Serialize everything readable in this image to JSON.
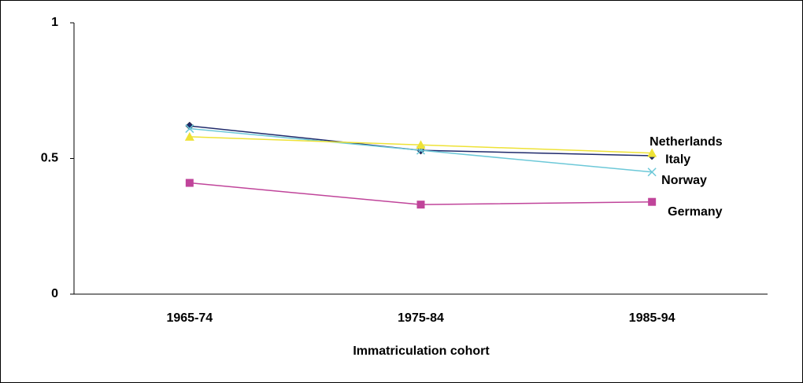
{
  "chart_data": {
    "type": "line",
    "x_label": "Immatriculation cohort",
    "categories": [
      "1965-74",
      "1975-84",
      "1985-94"
    ],
    "ylim": [
      0,
      1
    ],
    "yticks": [
      0,
      0.5,
      1
    ],
    "series": [
      {
        "name": "Italy",
        "color": "#1f2a6b",
        "values": [
          0.62,
          0.53,
          0.51
        ]
      },
      {
        "name": "Norway",
        "color": "#6cc8d8",
        "values": [
          0.61,
          0.53,
          0.45
        ]
      },
      {
        "name": "Netherlands",
        "color": "#eee236",
        "values": [
          0.58,
          0.55,
          0.52
        ]
      },
      {
        "name": "Germany",
        "color": "#c0449a",
        "values": [
          0.41,
          0.33,
          0.34
        ]
      }
    ]
  }
}
